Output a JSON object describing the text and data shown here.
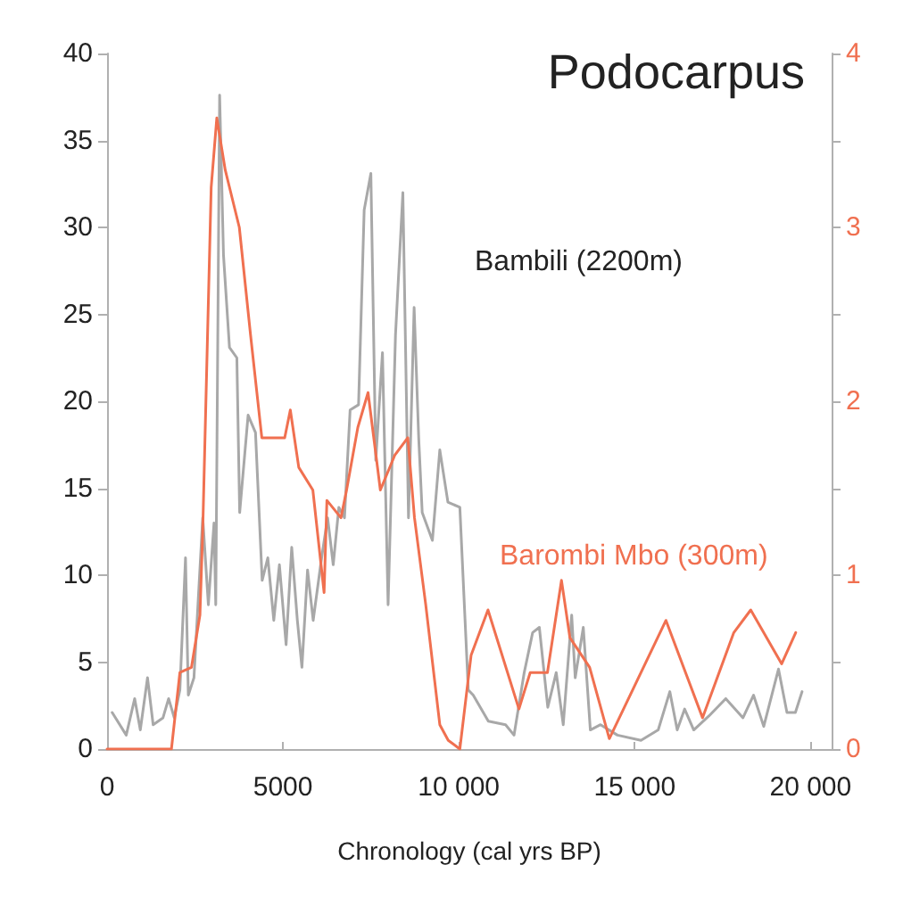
{
  "chart_data": {
    "type": "line",
    "title": "Podocarpus",
    "xlabel": "Chronology (cal yrs BP)",
    "xlim": [
      0,
      20600
    ],
    "xticks": [
      0,
      5000,
      {
        "value": 10000,
        "label": "10 000"
      },
      {
        "value": 15000,
        "label": "15 000"
      },
      {
        "value": 20000,
        "label": "20 000"
      }
    ],
    "ylim": [
      0,
      40
    ],
    "yticks": [
      0,
      5,
      10,
      15,
      20,
      25,
      30,
      35,
      40
    ],
    "y2lim": [
      0,
      4
    ],
    "y2ticks": [
      0,
      {
        "value": 0.5,
        "label": null
      },
      1,
      {
        "value": 1.5,
        "label": null
      },
      2,
      {
        "value": 2.5,
        "label": null
      },
      3,
      {
        "value": 3.5,
        "label": null
      },
      4
    ],
    "grid": false,
    "legend": false,
    "marker": "none",
    "line_style": "solid",
    "series": [
      {
        "name": "Bambili (2200m)",
        "color": "#a8a8a8",
        "x": [
          145,
          545,
          785,
          945,
          1150,
          1310,
          1590,
          1750,
          1910,
          2070,
          2230,
          2310,
          2470,
          2720,
          2880,
          3040,
          3090,
          3200,
          3310,
          3480,
          3690,
          3770,
          4010,
          4220,
          4410,
          4570,
          4740,
          4900,
          5090,
          5250,
          5410,
          5540,
          5700,
          5860,
          6100,
          6270,
          6430,
          6590,
          6750,
          6910,
          7150,
          7310,
          7500,
          7640,
          7830,
          7990,
          8200,
          8410,
          8570,
          8730,
          8860,
          8960,
          9250,
          9460,
          9690,
          10030,
          10270,
          10410,
          10840,
          11330,
          11570,
          11860,
          12100,
          12290,
          12530,
          12770,
          12970,
          13210,
          13310,
          13540,
          13740,
          14030,
          14510,
          15180,
          15670,
          16000,
          16210,
          16420,
          16680,
          17110,
          17590,
          18080,
          18380,
          18670,
          19090,
          19330,
          19570,
          19760
        ],
        "values": [
          2.1,
          0.8,
          2.9,
          1.1,
          4.1,
          1.4,
          1.8,
          2.9,
          1.8,
          3.4,
          11,
          3.1,
          4.1,
          13.3,
          8.3,
          13,
          8.3,
          37.6,
          28.4,
          23.1,
          22.5,
          13.6,
          19.2,
          18.2,
          9.7,
          11,
          7.4,
          10.6,
          6,
          11.6,
          7.4,
          4.7,
          10.3,
          7.4,
          11,
          13.3,
          10.6,
          13.9,
          13.3,
          19.5,
          19.8,
          31,
          33.1,
          16.6,
          22.8,
          8.3,
          23.8,
          32,
          13.3,
          25.4,
          17.9,
          13.6,
          12,
          17.2,
          14.2,
          13.9,
          3.4,
          3.1,
          1.6,
          1.4,
          0.8,
          4.4,
          6.7,
          7,
          2.4,
          4.4,
          1.4,
          7.7,
          4.1,
          7,
          1.1,
          1.4,
          0.8,
          0.5,
          1.1,
          3.3,
          1.1,
          2.3,
          1.1,
          1.9,
          2.9,
          1.8,
          3.1,
          1.3,
          4.6,
          2.1,
          2.1,
          3.3
        ]
      },
      {
        "name": "Barombi Mbo (300m)",
        "color": "#f07050",
        "axis": "y2",
        "x": [
          0,
          1830,
          2070,
          2400,
          2640,
          2720,
          2960,
          3120,
          3360,
          3760,
          4080,
          4400,
          5050,
          5210,
          5450,
          5850,
          6170,
          6250,
          6650,
          6810,
          7130,
          7420,
          7770,
          8180,
          8550,
          8740,
          9060,
          9460,
          9700,
          10030,
          10350,
          10830,
          11710,
          12030,
          12520,
          12920,
          13160,
          13720,
          14280,
          15890,
          16930,
          17820,
          18300,
          19180,
          19580
        ],
        "values": [
          0,
          0,
          0.44,
          0.47,
          0.77,
          1.26,
          3.23,
          3.63,
          3.33,
          3.0,
          2.38,
          1.79,
          1.79,
          1.95,
          1.62,
          1.49,
          0.9,
          1.43,
          1.33,
          1.49,
          1.85,
          2.05,
          1.49,
          1.69,
          1.79,
          1.33,
          0.83,
          0.14,
          0.05,
          0,
          0.54,
          0.8,
          0.23,
          0.44,
          0.44,
          0.97,
          0.64,
          0.47,
          0.06,
          0.74,
          0.18,
          0.67,
          0.8,
          0.49,
          0.67
        ]
      }
    ]
  }
}
